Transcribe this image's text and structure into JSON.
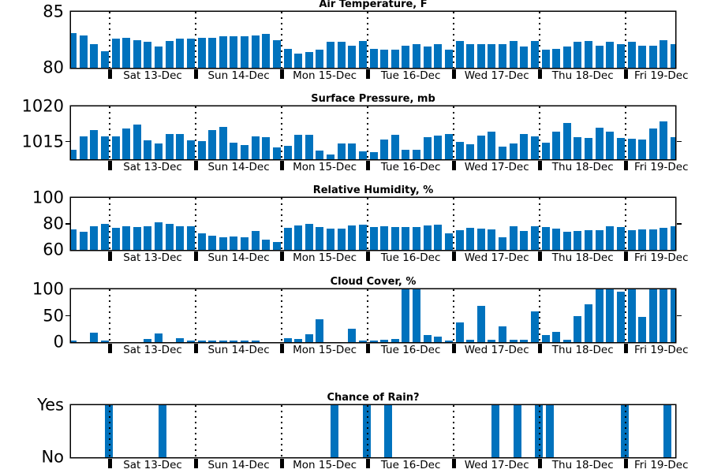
{
  "style": {
    "bar_color": "#0072BD",
    "axis_color": "#000000",
    "background": "#ffffff"
  },
  "x_axis": {
    "day_labels": [
      "Sat 13-Dec",
      "Sun 14-Dec",
      "Mon 15-Dec",
      "Tue 16-Dec",
      "Wed 17-Dec",
      "Thu 18-Dec",
      "Fri 19-Dec"
    ],
    "slots_total": 57,
    "lead_slots": 4,
    "slots_per_day": 8
  },
  "chart_data": [
    {
      "id": "air-temperature",
      "type": "bar",
      "title": "Air Temperature, F",
      "ylabel": "",
      "ylim": [
        80,
        85
      ],
      "grid": "vertical-dotted",
      "yticks": [
        {
          "label": "85",
          "value": 85,
          "mark": false
        },
        {
          "label": "80",
          "value": 80,
          "mark": false
        }
      ],
      "values": [
        83.1,
        82.9,
        82.1,
        81.5,
        82.6,
        82.7,
        82.5,
        82.3,
        81.9,
        82.4,
        82.6,
        82.6,
        82.7,
        82.7,
        82.8,
        82.8,
        82.8,
        82.9,
        83,
        82.5,
        81.7,
        81.3,
        81.4,
        81.6,
        82.3,
        82.3,
        82,
        82.4,
        81.7,
        81.6,
        81.6,
        82,
        82.1,
        81.9,
        82.1,
        81.6,
        82.4,
        82.1,
        82.1,
        82.1,
        82.1,
        82.4,
        81.9,
        82.4,
        81.6,
        81.7,
        81.9,
        82.3,
        82.4,
        82,
        82.3,
        82.1,
        82.3,
        82,
        82,
        82.5,
        82.1
      ]
    },
    {
      "id": "surface-pressure",
      "type": "bar",
      "title": "Surface Pressure, mb",
      "ylabel": "",
      "ylim": [
        1012.5,
        1020
      ],
      "grid": "vertical-dotted",
      "yticks": [
        {
          "label": "1020",
          "value": 1020,
          "mark": false
        },
        {
          "label": "1015",
          "value": 1015,
          "mark": true
        }
      ],
      "values": [
        1013.9,
        1015.8,
        1016.6,
        1015.7,
        1015.7,
        1016.9,
        1017.4,
        1015.2,
        1014.7,
        1016.1,
        1016.1,
        1015.2,
        1015.1,
        1016.7,
        1017.1,
        1014.9,
        1014.5,
        1015.8,
        1015.6,
        1014.2,
        1014.4,
        1016,
        1016,
        1013.7,
        1013.2,
        1014.7,
        1014.7,
        1013.6,
        1013.5,
        1015.3,
        1016,
        1013.9,
        1013.9,
        1015.6,
        1015.9,
        1016.1,
        1015,
        1014.6,
        1015.9,
        1016.4,
        1014.3,
        1014.8,
        1016.1,
        1015.7,
        1014.9,
        1016.4,
        1017.7,
        1015.6,
        1015.5,
        1017,
        1016.4,
        1015.5,
        1015.4,
        1015.3,
        1016.9,
        1017.9,
        1015.6
      ]
    },
    {
      "id": "relative-humidity",
      "type": "bar",
      "title": "Relative Humidity, %",
      "ylabel": "",
      "ylim": [
        60,
        100
      ],
      "grid": "vertical-dotted",
      "yticks": [
        {
          "label": "100",
          "value": 100,
          "mark": false
        },
        {
          "label": "80",
          "value": 80,
          "mark": true
        },
        {
          "label": "60",
          "value": 60,
          "mark": false
        }
      ],
      "values": [
        76,
        74,
        78.5,
        80,
        77,
        78,
        77.5,
        78.5,
        81.5,
        80,
        78.5,
        78,
        73,
        71,
        70,
        70.5,
        70,
        74.5,
        68,
        66,
        77,
        79,
        80,
        77.5,
        76.5,
        76.5,
        79,
        79.5,
        77.5,
        78,
        77.5,
        77.5,
        77.5,
        79,
        79.5,
        73,
        75,
        77,
        76.5,
        75.5,
        70,
        78.5,
        74.5,
        78,
        77.5,
        76.5,
        74,
        74.5,
        75,
        75,
        78,
        77.5,
        75,
        75.5,
        76,
        77,
        78
      ]
    },
    {
      "id": "cloud-cover",
      "type": "bar",
      "title": "Cloud Cover, %",
      "ylabel": "",
      "ylim": [
        0,
        100
      ],
      "grid": "vertical-dotted",
      "yticks": [
        {
          "label": "100",
          "value": 100,
          "mark": false
        },
        {
          "label": "50",
          "value": 50,
          "mark": true
        },
        {
          "label": "0",
          "value": 0,
          "mark": false
        }
      ],
      "values": [
        3,
        0,
        18,
        3,
        0,
        0,
        0,
        6,
        16,
        0,
        7,
        3,
        3,
        3,
        3,
        3,
        3,
        3,
        0,
        0,
        8,
        6,
        15,
        44,
        0,
        0,
        25,
        3,
        3,
        4,
        6,
        100,
        100,
        13,
        10,
        3,
        37,
        4,
        69,
        4,
        30,
        4,
        4,
        59,
        14,
        20,
        4,
        49,
        71,
        100,
        100,
        95,
        100,
        48,
        100,
        100,
        100
      ]
    },
    {
      "id": "chance-of-rain",
      "type": "bar",
      "title": "Chance of Rain?",
      "ylabel": "",
      "ylim": [
        0,
        1
      ],
      "grid": "vertical-dotted-on-top",
      "yticks": [
        {
          "label": "Yes",
          "value": 1,
          "mark": false
        },
        {
          "label": "No",
          "value": 0,
          "mark": false
        }
      ],
      "values": [
        0,
        0,
        0,
        1,
        0,
        0,
        0,
        0,
        1,
        0,
        0,
        0,
        0,
        0,
        0,
        0,
        0,
        0,
        0,
        0,
        0,
        0,
        0,
        0,
        1,
        0,
        0,
        1,
        0,
        1,
        0,
        0,
        0,
        0,
        0,
        0,
        0,
        0,
        0,
        1,
        0,
        1,
        0,
        1,
        1,
        0,
        0,
        0,
        0,
        0,
        0,
        1,
        0,
        0,
        0,
        1,
        0
      ]
    }
  ]
}
